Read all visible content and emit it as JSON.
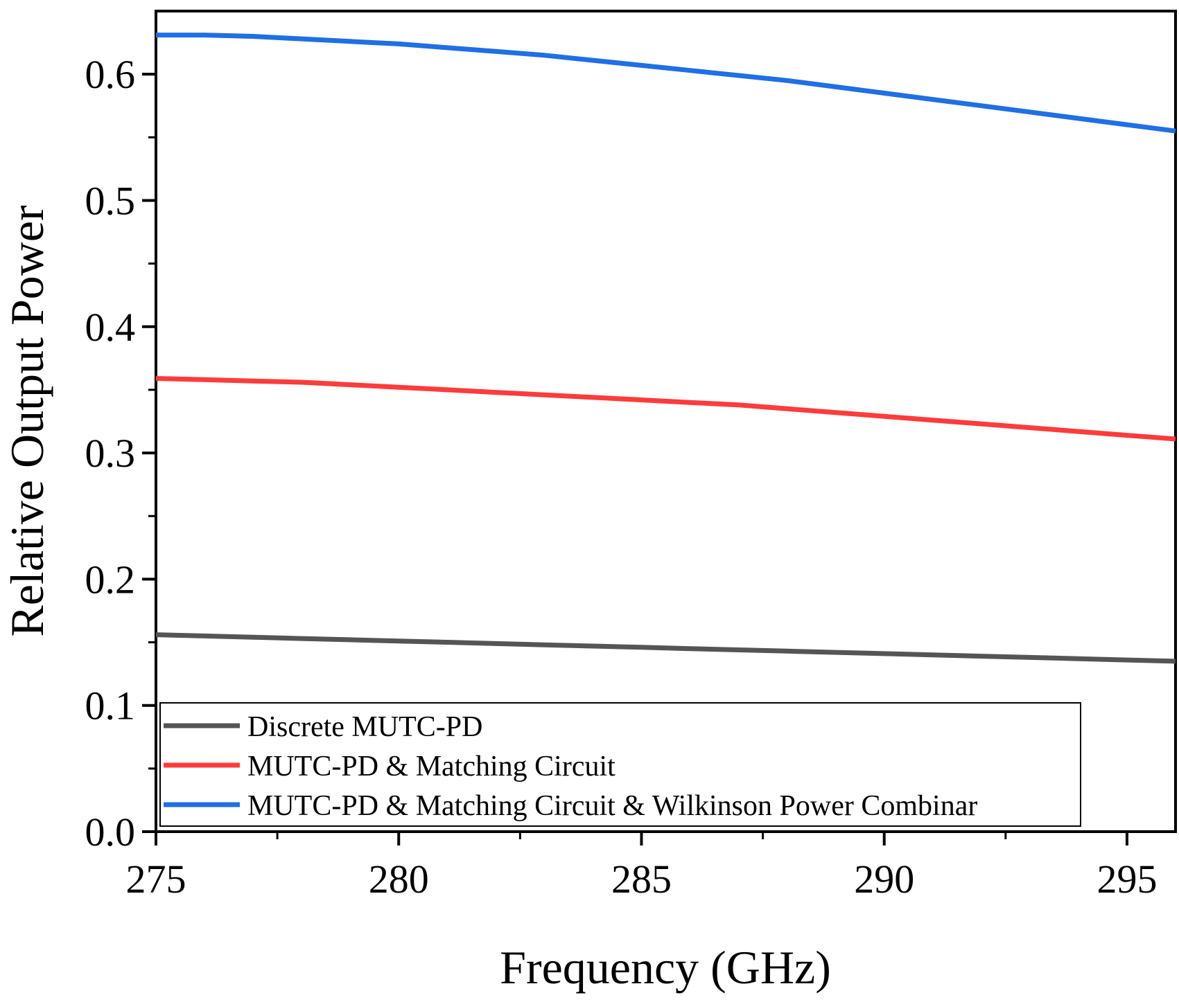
{
  "chart_data": {
    "type": "line",
    "title": "",
    "xlabel": "Frequency (GHz)",
    "ylabel": "Relative Output Power",
    "xlim": [
      275,
      296
    ],
    "ylim": [
      0,
      0.65
    ],
    "xticks": [
      275,
      280,
      285,
      290,
      295
    ],
    "xtick_labels": [
      "275",
      "280",
      "285",
      "290",
      "295"
    ],
    "yticks": [
      0,
      0.1,
      0.2,
      0.3,
      0.4,
      0.5,
      0.6
    ],
    "ytick_labels": [
      "0.0",
      "0.1",
      "0.2",
      "0.3",
      "0.4",
      "0.5",
      "0.6"
    ],
    "grid": false,
    "legend_position": "bottom",
    "x": [
      275,
      276,
      277,
      278,
      279,
      280,
      281,
      282,
      283,
      284,
      285,
      286,
      287,
      288,
      289,
      290,
      291,
      292,
      293,
      294,
      295,
      296
    ],
    "series": [
      {
        "name": "Discrete MUTC-PD",
        "color": "#555555",
        "values": [
          0.156,
          0.155,
          0.154,
          0.153,
          0.152,
          0.151,
          0.15,
          0.149,
          0.148,
          0.147,
          0.146,
          0.145,
          0.144,
          0.143,
          0.142,
          0.141,
          0.14,
          0.139,
          0.138,
          0.137,
          0.136,
          0.135
        ]
      },
      {
        "name": "MUTC-PD & Matching Circuit",
        "color": "#ff3b3b",
        "values": [
          0.359,
          0.358,
          0.357,
          0.356,
          0.354,
          0.352,
          0.35,
          0.348,
          0.346,
          0.344,
          0.342,
          0.34,
          0.338,
          0.335,
          0.332,
          0.329,
          0.326,
          0.323,
          0.32,
          0.317,
          0.314,
          0.311
        ]
      },
      {
        "name": "MUTC-PD & Matching Circuit & Wilkinson Power Combinar",
        "color": "#1f6fe5",
        "values": [
          0.631,
          0.631,
          0.63,
          0.628,
          0.626,
          0.624,
          0.621,
          0.618,
          0.615,
          0.611,
          0.607,
          0.603,
          0.599,
          0.595,
          0.59,
          0.585,
          0.58,
          0.575,
          0.57,
          0.565,
          0.56,
          0.555
        ]
      }
    ]
  }
}
